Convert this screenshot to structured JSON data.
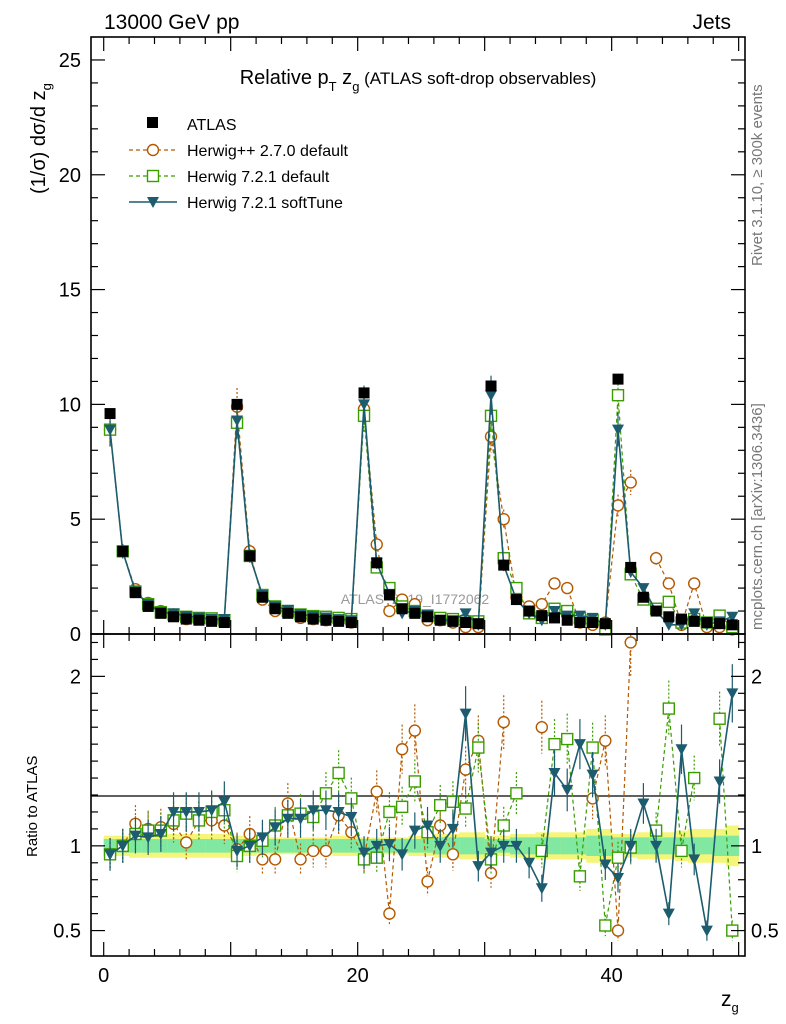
{
  "header": {
    "energy_label": "13000 GeV pp",
    "category_label": "Jets"
  },
  "side": {
    "rivet_label": "Rivet 3.1.10, ≥ 300k events",
    "mcplots_label": "mcplots.cern.ch [arXiv:1306.3436]"
  },
  "watermark": "ATLAS_2019_I1772062",
  "colors": {
    "atlas": "#000000",
    "herwigpp": "#b35900",
    "herwig721": "#3a9e00",
    "softtune": "#1c5c6e",
    "band_inner": "#80e8a0",
    "band_outer": "#f5f57a"
  },
  "chart_data": [
    {
      "type": "scatter",
      "panel": "main",
      "title_main": "Relative p",
      "title_sub1": "T",
      "title_mid": " z",
      "title_sub2": "g",
      "title_tail": " (ATLAS soft-drop observables)",
      "ylabel": "(1/σ) dσ/d z",
      "ylabel_sub": "g",
      "xlim": [
        -1,
        50.5
      ],
      "ylim": [
        0,
        26
      ],
      "yticks": [
        0,
        5,
        10,
        15,
        20,
        25
      ],
      "ytick_labels": [
        "0",
        "5",
        "10",
        "15",
        "20",
        "25"
      ],
      "legend": [
        "ATLAS",
        "Herwig++ 2.7.0 default",
        "Herwig 7.2.1 default",
        "Herwig 7.2.1 softTune"
      ],
      "x": [
        0.5,
        1.5,
        2.5,
        3.5,
        4.5,
        5.5,
        6.5,
        7.5,
        8.5,
        9.5,
        10.5,
        11.5,
        12.5,
        13.5,
        14.5,
        15.5,
        16.5,
        17.5,
        18.5,
        19.5,
        20.5,
        21.5,
        22.5,
        23.5,
        24.5,
        25.5,
        26.5,
        27.5,
        28.5,
        29.5,
        30.5,
        31.5,
        32.5,
        33.5,
        34.5,
        35.5,
        36.5,
        37.5,
        38.5,
        39.5,
        40.5,
        41.5,
        42.5,
        43.5,
        44.5,
        45.5,
        46.5,
        47.5,
        48.5,
        49.5
      ],
      "series": [
        {
          "name": "ATLAS",
          "values": [
            9.6,
            3.6,
            1.8,
            1.2,
            0.9,
            0.75,
            0.65,
            0.6,
            0.55,
            0.5,
            10.0,
            3.4,
            1.6,
            1.1,
            0.9,
            0.75,
            0.65,
            0.6,
            0.55,
            0.5,
            10.5,
            3.1,
            1.7,
            1.1,
            0.9,
            0.75,
            0.6,
            0.55,
            0.5,
            0.45,
            10.8,
            3.0,
            1.5,
            1.0,
            0.8,
            0.7,
            0.6,
            0.5,
            0.5,
            0.45,
            11.1,
            2.9,
            1.6,
            1.0,
            0.75,
            0.65,
            0.55,
            0.5,
            0.45,
            0.4
          ]
        },
        {
          "name": "Herwig++ 2.7.0 default",
          "values": [
            8.9,
            3.6,
            1.95,
            1.35,
            1.0,
            0.85,
            0.65,
            0.65,
            0.62,
            0.55,
            9.9,
            3.6,
            1.5,
            1.0,
            1.0,
            0.7,
            0.65,
            0.6,
            0.6,
            0.5,
            9.8,
            3.9,
            1.0,
            1.5,
            1.3,
            0.6,
            0.6,
            0.5,
            0.3,
            0.3,
            8.6,
            5.0,
            1.6,
            1.2,
            1.3,
            2.2,
            2.0,
            0.5,
            0.4,
            0.5,
            5.6,
            6.6,
            null,
            3.3,
            2.2,
            0.4,
            2.2,
            0.3,
            0.3,
            0.2
          ]
        },
        {
          "name": "Herwig 7.2.1 default",
          "values": [
            8.9,
            3.6,
            1.85,
            1.3,
            0.95,
            0.85,
            0.75,
            0.7,
            0.68,
            0.6,
            9.2,
            3.4,
            1.7,
            1.2,
            1.0,
            0.85,
            0.78,
            0.75,
            0.7,
            0.65,
            9.5,
            2.9,
            2.0,
            1.2,
            1.0,
            0.8,
            0.7,
            0.65,
            0.55,
            0.55,
            9.5,
            3.3,
            2.0,
            0.9,
            0.7,
            1.1,
            1.0,
            0.7,
            0.6,
            0.2,
            10.4,
            2.6,
            1.5,
            1.1,
            1.4,
            0.5,
            0.65,
            0.5,
            0.8,
            0.3
          ]
        },
        {
          "name": "Herwig 7.2.1 softTune",
          "values": [
            8.9,
            3.6,
            1.85,
            1.3,
            0.95,
            0.9,
            0.78,
            0.72,
            0.66,
            0.65,
            9.3,
            3.4,
            1.7,
            1.2,
            1.05,
            0.86,
            0.78,
            0.72,
            0.65,
            0.6,
            10.0,
            3.1,
            1.75,
            0.9,
            1.0,
            0.85,
            0.6,
            0.6,
            0.9,
            0.4,
            10.4,
            3.0,
            1.5,
            0.9,
            0.6,
            1.0,
            0.8,
            0.8,
            0.7,
            0.4,
            8.9,
            2.7,
            2.0,
            1.0,
            0.4,
            0.4,
            0.9,
            0.4,
            0.55,
            0.75
          ]
        }
      ]
    },
    {
      "type": "scatter",
      "panel": "ratio",
      "ylabel": "Ratio to ATLAS",
      "xlabel": "z",
      "xlabel_sub": "g",
      "xlim": [
        -1,
        50.5
      ],
      "ylim": [
        0.35,
        2.25
      ],
      "yticks": [
        0.5,
        1,
        2
      ],
      "ytick_labels": [
        "0.5",
        "1",
        "2"
      ],
      "xticks": [
        0,
        20,
        40
      ],
      "xtick_labels": [
        "0",
        "20",
        "40"
      ],
      "x": [
        0.5,
        1.5,
        2.5,
        3.5,
        4.5,
        5.5,
        6.5,
        7.5,
        8.5,
        9.5,
        10.5,
        11.5,
        12.5,
        13.5,
        14.5,
        15.5,
        16.5,
        17.5,
        18.5,
        19.5,
        20.5,
        21.5,
        22.5,
        23.5,
        24.5,
        25.5,
        26.5,
        27.5,
        28.5,
        29.5,
        30.5,
        31.5,
        32.5,
        33.5,
        34.5,
        35.5,
        36.5,
        37.5,
        38.5,
        39.5,
        40.5,
        41.5,
        42.5,
        43.5,
        44.5,
        45.5,
        46.5,
        47.5,
        48.5,
        49.5
      ],
      "band_inner": [
        0.04,
        0.04,
        0.04,
        0.04,
        0.04,
        0.04,
        0.04,
        0.04,
        0.04,
        0.04,
        0.04,
        0.04,
        0.04,
        0.04,
        0.04,
        0.04,
        0.04,
        0.04,
        0.04,
        0.04,
        0.04,
        0.04,
        0.04,
        0.04,
        0.04,
        0.04,
        0.05,
        0.05,
        0.05,
        0.05,
        0.04,
        0.04,
        0.05,
        0.05,
        0.05,
        0.05,
        0.05,
        0.05,
        0.06,
        0.06,
        0.05,
        0.05,
        0.05,
        0.05,
        0.05,
        0.05,
        0.05,
        0.05,
        0.06,
        0.06
      ],
      "band_outer": [
        0.06,
        0.06,
        0.07,
        0.07,
        0.07,
        0.07,
        0.07,
        0.07,
        0.07,
        0.07,
        0.06,
        0.06,
        0.05,
        0.05,
        0.05,
        0.05,
        0.05,
        0.05,
        0.06,
        0.06,
        0.05,
        0.05,
        0.05,
        0.05,
        0.06,
        0.06,
        0.07,
        0.07,
        0.08,
        0.08,
        0.06,
        0.06,
        0.07,
        0.07,
        0.08,
        0.08,
        0.08,
        0.08,
        0.1,
        0.1,
        0.07,
        0.07,
        0.08,
        0.08,
        0.08,
        0.09,
        0.1,
        0.1,
        0.1,
        0.12
      ],
      "series": [
        {
          "name": "Herwig++ 2.7.0 default",
          "values": [
            0.95,
            1.0,
            1.13,
            1.1,
            1.11,
            1.13,
            1.02,
            1.15,
            1.15,
            1.12,
            0.98,
            1.07,
            0.92,
            0.92,
            1.25,
            0.92,
            0.97,
            0.97,
            1.18,
            1.08,
            0.93,
            1.32,
            0.6,
            1.57,
            1.68,
            0.79,
            1.12,
            0.95,
            1.45,
            1.62,
            0.84,
            1.73,
            null,
            null,
            1.7,
            null,
            null,
            null,
            1.28,
            1.62,
            0.5,
            2.2,
            null,
            null,
            null,
            null,
            null,
            null,
            null,
            null
          ]
        },
        {
          "name": "Herwig 7.2.1 default",
          "values": [
            0.95,
            1.0,
            1.07,
            1.09,
            1.09,
            1.15,
            1.19,
            1.15,
            1.2,
            1.21,
            0.94,
            1.0,
            1.03,
            1.12,
            1.18,
            1.19,
            1.17,
            1.31,
            1.43,
            1.28,
            0.92,
            0.93,
            1.2,
            1.23,
            1.38,
            1.08,
            1.24,
            1.26,
            1.22,
            1.58,
            0.92,
            1.12,
            1.31,
            null,
            0.97,
            1.6,
            1.63,
            0.82,
            1.58,
            0.53,
            0.93,
            0.99,
            null,
            1.09,
            1.81,
            0.97,
            1.4,
            null,
            1.75,
            0.5
          ]
        },
        {
          "name": "Herwig 7.2.1 softTune",
          "values": [
            0.95,
            1.0,
            1.06,
            1.05,
            1.07,
            1.2,
            1.2,
            1.2,
            1.21,
            1.26,
            0.97,
            1.0,
            1.05,
            1.11,
            1.16,
            1.16,
            1.21,
            1.21,
            1.2,
            1.17,
            0.96,
            1.0,
            1.01,
            0.95,
            1.09,
            1.12,
            1.0,
            1.1,
            1.78,
            0.88,
            0.96,
            1.0,
            1.0,
            0.9,
            0.75,
            1.43,
            1.33,
            1.6,
            1.42,
            0.89,
            0.81,
            1.0,
            1.25,
            1.0,
            0.6,
            1.57,
            0.92,
            0.5,
            1.38,
            1.9
          ]
        }
      ]
    }
  ]
}
